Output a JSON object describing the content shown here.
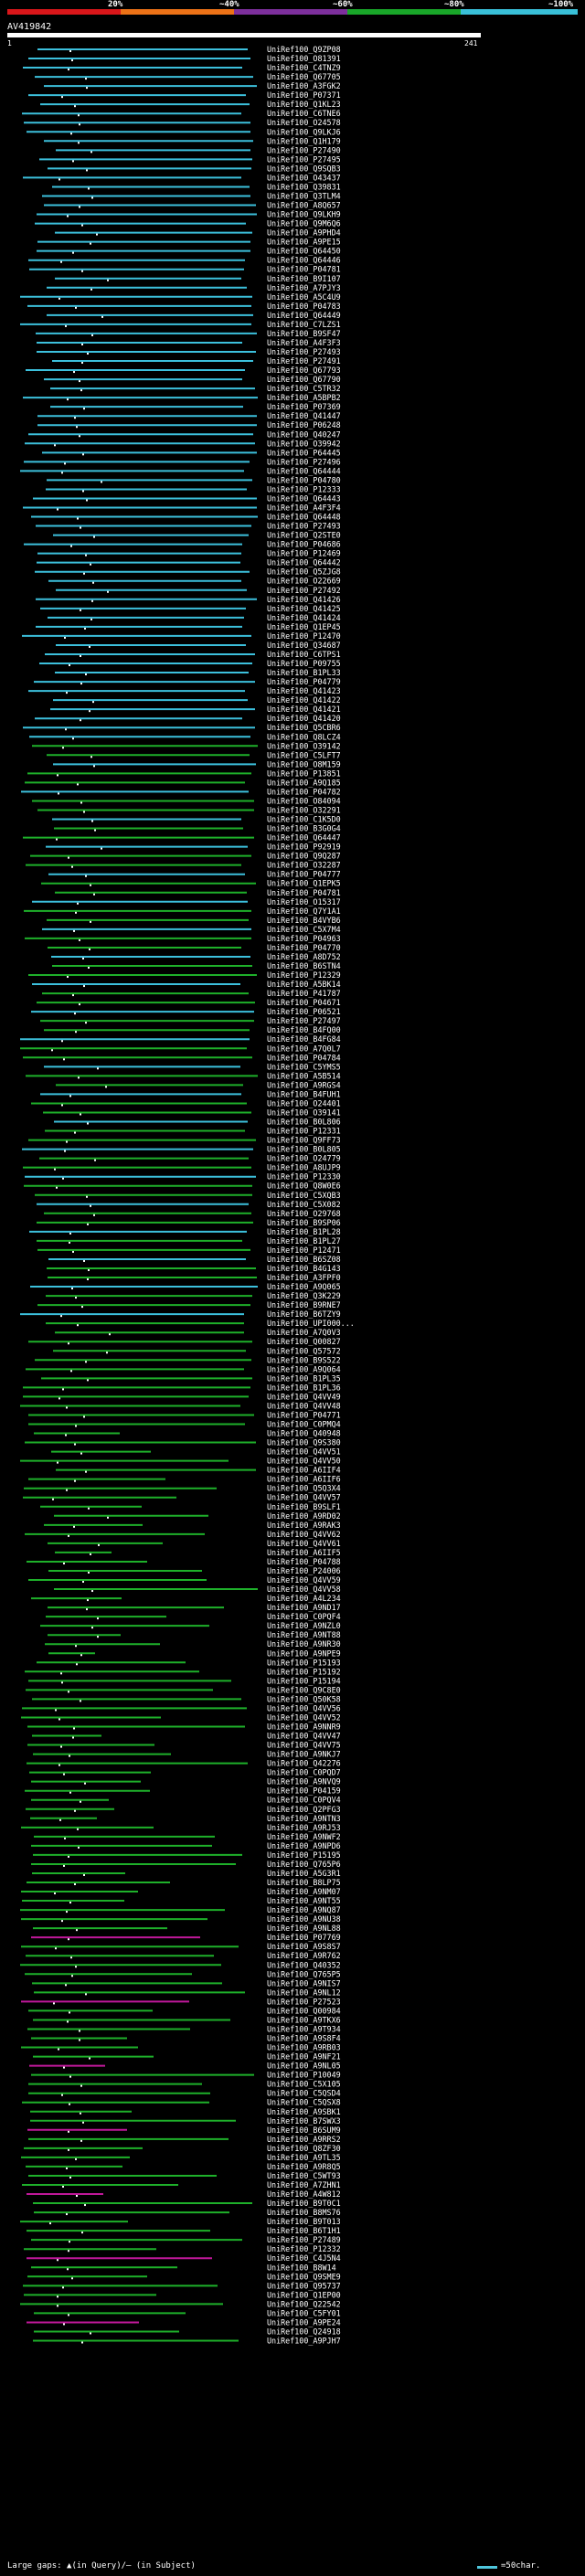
{
  "legend": {
    "labels": [
      "20%",
      "~40%",
      "~60%",
      "~80%",
      "~100%"
    ],
    "colors": [
      "#d9161a",
      "#ec7217",
      "#7d2f9c",
      "#19a629",
      "#39c0d8"
    ]
  },
  "query": {
    "id": "AV419842",
    "start": "1",
    "end": "241"
  },
  "footer": {
    "gaps_text": "Large gaps: ▲(in Query)/— (in Subject)",
    "scale_text": "=50char."
  },
  "hits": [
    "UniRef100_Q9ZP08",
    "UniRef100_O81391",
    "UniRef100_C4TNZ9",
    "UniRef100_Q67705",
    "UniRef100_A3FGK2",
    "UniRef100_P07371",
    "UniRef100_Q1KL23",
    "UniRef100_C6TNE6",
    "UniRef100_O24578",
    "UniRef100_Q9LKJ6",
    "UniRef100_Q1H179",
    "UniRef100_P27490",
    "UniRef100_P27495",
    "UniRef100_Q9SQB3",
    "UniRef100_O43437",
    "UniRef100_Q39831",
    "UniRef100_Q3TLM4",
    "UniRef100_A8Q657",
    "UniRef100_Q9LKH9",
    "UniRef100_Q9M6Q6",
    "UniRef100_A9PHD4",
    "UniRef100_A9PE15",
    "UniRef100_Q64450",
    "UniRef100_Q64446",
    "UniRef100_P04781",
    "UniRef100_B9I107",
    "UniRef100_A7PJY3",
    "UniRef100_A5C4U9",
    "UniRef100_P04783",
    "UniRef100_Q64449",
    "UniRef100_C7LZS1",
    "UniRef100_B9SF47",
    "UniRef100_A4F3F3",
    "UniRef100_P27493",
    "UniRef100_P27491",
    "UniRef100_Q67793",
    "UniRef100_Q67790",
    "UniRef100_C5TR32",
    "UniRef100_A5BPB2",
    "UniRef100_P07369",
    "UniRef100_Q41447",
    "UniRef100_P06248",
    "UniRef100_Q40247",
    "UniRef100_O39942",
    "UniRef100_P64445",
    "UniRef100_P27496",
    "UniRef100_Q64444",
    "UniRef100_P04780",
    "UniRef100_P12333",
    "UniRef100_Q64443",
    "UniRef100_A4F3F4",
    "UniRef100_Q64448",
    "UniRef100_P27493",
    "UniRef100_Q2STE0",
    "UniRef100_P04686",
    "UniRef100_P12469",
    "UniRef100_Q64442",
    "UniRef100_Q5ZJG8",
    "UniRef100_O22669",
    "UniRef100_P27492",
    "UniRef100_Q41426",
    "UniRef100_Q41425",
    "UniRef100_Q41424",
    "UniRef100_Q1EP45",
    "UniRef100_P12470",
    "UniRef100_Q34687",
    "UniRef100_C6TPS1",
    "UniRef100_P09755",
    "UniRef100_B1PL33",
    "UniRef100_P04779",
    "UniRef100_Q41423",
    "UniRef100_Q41422",
    "UniRef100_Q41421",
    "UniRef100_Q41420",
    "UniRef100_Q5CBR6",
    "UniRef100_Q8LCZ4",
    "UniRef100_O39142",
    "UniRef100_C5LFT7",
    "UniRef100_O8M159",
    "UniRef100_P13851",
    "UniRef100_A9Q185",
    "UniRef100_P04782",
    "UniRef100_O84094",
    "UniRef100_O32291",
    "UniRef100_C1K5D0",
    "UniRef100_B3G0G4",
    "UniRef100_Q64447",
    "UniRef100_P92919",
    "UniRef100_Q9Q287",
    "UniRef100_O32287",
    "UniRef100_P04777",
    "UniRef100_Q1EPK5",
    "UniRef100_P04781",
    "UniRef100_O15317",
    "UniRef100_Q7Y1A1",
    "UniRef100_B4VYB6",
    "UniRef100_C5X7M4",
    "UniRef100_P04963",
    "UniRef100_P04770",
    "UniRef100_A8D752",
    "UniRef100_B6STN4",
    "UniRef100_P12329",
    "UniRef100_A5BK14",
    "UniRef100_P41787",
    "UniRef100_P04671",
    "UniRef100_P06521",
    "UniRef100_P27497",
    "UniRef100_B4FQ00",
    "UniRef100_B4FG84",
    "UniRef100_A7Q0L7",
    "UniRef100_P04784",
    "UniRef100_C5YMS5",
    "UniRef100_A5B514",
    "UniRef100_A9RGS4",
    "UniRef100_B4FUH1",
    "UniRef100_O24401",
    "UniRef100_O39141",
    "UniRef100_B0L806",
    "UniRef100_P12331",
    "UniRef100_Q9FF73",
    "UniRef100_B0L805",
    "UniRef100_O24779",
    "UniRef100_A8UJP9",
    "UniRef100_P12330",
    "UniRef100_Q8W0E6",
    "UniRef100_C5XQB3",
    "UniRef100_C5X082",
    "UniRef100_O29768",
    "UniRef100_B9SP06",
    "UniRef100_B1PL28",
    "UniRef100_B1PL27",
    "UniRef100_P12471",
    "UniRef100_B6SZ08",
    "UniRef100_B4G143",
    "UniRef100_A3FPF0",
    "UniRef100_A9Q065",
    "UniRef100_Q3K229",
    "UniRef100_B9RNE7",
    "UniRef100_B6TZY9",
    "UniRef100_UPI000...",
    "UniRef100_A7Q0V3",
    "UniRef100_Q00827",
    "UniRef100_Q57572",
    "UniRef100_B9S522",
    "UniRef100_A9Q064",
    "UniRef100_B1PL35",
    "UniRef100_B1PL36",
    "UniRef100_Q4VV49",
    "UniRef100_Q4VV48",
    "UniRef100_P04771",
    "UniRef100_C0PMQ4",
    "UniRef100_Q40948",
    "UniRef100_Q9S380",
    "UniRef100_Q4VV51",
    "UniRef100_Q4VV50",
    "UniRef100_A6IIF4",
    "UniRef100_A6IIF6",
    "UniRef100_Q5Q3X4",
    "UniRef100_Q4VV57",
    "UniRef100_B9SLF1",
    "UniRef100_A9RD02",
    "UniRef100_A9RAK3",
    "UniRef100_Q4VV62",
    "UniRef100_Q4VV61",
    "UniRef100_A6IIF5",
    "UniRef100_P04788",
    "UniRef100_P24006",
    "UniRef100_Q4VV59",
    "UniRef100_Q4VV58",
    "UniRef100_A4L234",
    "UniRef100_A9ND17",
    "UniRef100_C0PQF4",
    "UniRef100_A9NZL0",
    "UniRef100_A9NT88",
    "UniRef100_A9NR30",
    "UniRef100_A9NPE9",
    "UniRef100_P15193",
    "UniRef100_P15192",
    "UniRef100_P15194",
    "UniRef100_Q9C8E0",
    "UniRef100_Q50K58",
    "UniRef100_Q4VV56",
    "UniRef100_Q4VV52",
    "UniRef100_A9NNR9",
    "UniRef100_Q4VV47",
    "UniRef100_Q4VV75",
    "UniRef100_A9NKJ7",
    "UniRef100_Q42276",
    "UniRef100_C0PQD7",
    "UniRef100_A9NVQ9",
    "UniRef100_P04159",
    "UniRef100_C0PQV4",
    "UniRef100_Q2PFG3",
    "UniRef100_A9NTN3",
    "UniRef100_A9RJ53",
    "UniRef100_A9NWF2",
    "UniRef100_A9NPD6",
    "UniRef100_P15195",
    "UniRef100_Q765P6",
    "UniRef100_A5G3R1",
    "UniRef100_B8LP75",
    "UniRef100_A9NM07",
    "UniRef100_A9NT55",
    "UniRef100_A9NQ87",
    "UniRef100_A9NU38",
    "UniRef100_A9NL88",
    "UniRef100_P07769",
    "UniRef100_A9S8S7",
    "UniRef100_A9R762",
    "UniRef100_Q40352",
    "UniRef100_Q765P5",
    "UniRef100_A9NIS7",
    "UniRef100_A9NL12",
    "UniRef100_P27523",
    "UniRef100_Q00984",
    "UniRef100_A9TKX6",
    "UniRef100_A9T934",
    "UniRef100_A9S8F4",
    "UniRef100_A9RB03",
    "UniRef100_A9NF21",
    "UniRef100_A9NL05",
    "UniRef100_P10049",
    "UniRef100_C5X105",
    "UniRef100_C5QSD4",
    "UniRef100_C5QSX8",
    "UniRef100_A9SBK1",
    "UniRef100_B7SWX3",
    "UniRef100_B6SUM9",
    "UniRef100_A9RRS2",
    "UniRef100_Q8ZF30",
    "UniRef100_A9TL35",
    "UniRef100_A9R8Q5",
    "UniRef100_C5WT93",
    "UniRef100_A7ZHN1",
    "UniRef100_A4W812",
    "UniRef100_B9T0C1",
    "UniRef100_B8MS76",
    "UniRef100_B9T013",
    "UniRef100_B6T1H1",
    "UniRef100_P27489",
    "UniRef100_P12332",
    "UniRef100_C4J5N4",
    "UniRef100_B8W14",
    "UniRef100_Q9SME9",
    "UniRef100_Q95737",
    "UniRef100_Q1EP00",
    "UniRef100_Q22542",
    "UniRef100_C5FY01",
    "UniRef100_A9PE24",
    "UniRef100_Q24918",
    "UniRef100_A9PJH7"
  ]
}
